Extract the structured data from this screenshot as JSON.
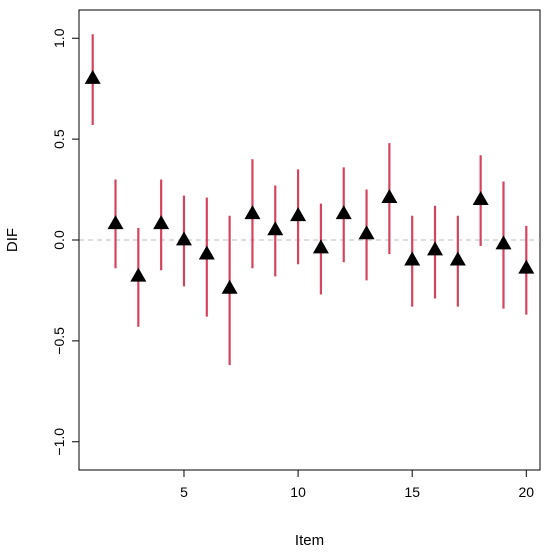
{
  "chart_data": {
    "type": "scatter",
    "title": "",
    "xlabel": "Item",
    "ylabel": "DIF",
    "xlim": [
      0.4,
      20.6
    ],
    "ylim": [
      -1.14,
      1.14
    ],
    "x_ticks": [
      5,
      10,
      15,
      20
    ],
    "y_ticks": [
      -1.0,
      -0.5,
      0.0,
      0.5,
      1.0
    ],
    "x_tick_labels": [
      "5",
      "10",
      "15",
      "20"
    ],
    "y_tick_labels": [
      "−1.0",
      "−0.5",
      "0.0",
      "0.5",
      "1.0"
    ],
    "reference_line": {
      "y": 0.0,
      "style": "dashed",
      "color": "#bdbdbd"
    },
    "grid": false,
    "marker": "filled-triangle",
    "marker_color": "#000000",
    "interval_color": "#d5445f",
    "series": [
      {
        "x": [
          1,
          2,
          3,
          4,
          5,
          6,
          7,
          8,
          9,
          10,
          11,
          12,
          13,
          14,
          15,
          16,
          17,
          18,
          19,
          20
        ],
        "values": [
          0.8,
          0.08,
          -0.18,
          0.08,
          0.0,
          -0.07,
          -0.24,
          0.13,
          0.05,
          0.12,
          -0.04,
          0.13,
          0.03,
          0.21,
          -0.1,
          -0.05,
          -0.1,
          0.2,
          -0.02,
          -0.14
        ],
        "lower": [
          0.57,
          -0.14,
          -0.43,
          -0.15,
          -0.23,
          -0.38,
          -0.62,
          -0.14,
          -0.18,
          -0.12,
          -0.27,
          -0.11,
          -0.2,
          -0.07,
          -0.33,
          -0.29,
          -0.33,
          -0.03,
          -0.34,
          -0.37
        ],
        "upper": [
          1.02,
          0.3,
          0.06,
          0.3,
          0.22,
          0.21,
          0.12,
          0.4,
          0.27,
          0.35,
          0.18,
          0.36,
          0.25,
          0.48,
          0.12,
          0.17,
          0.12,
          0.42,
          0.29,
          0.07
        ]
      }
    ]
  }
}
